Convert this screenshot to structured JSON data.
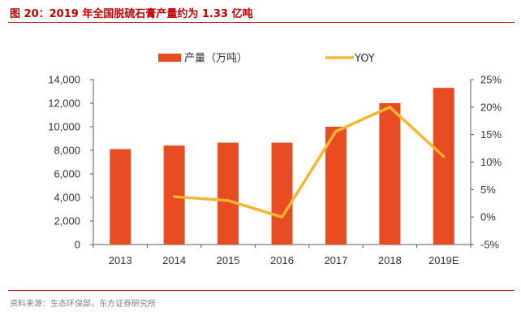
{
  "figure": {
    "title": "图 20：2019 年全国脱硫石膏产量约为 1.33 亿吨",
    "source": "资料来源：生态环保部，东方证券研究所"
  },
  "colors": {
    "bar": "#e84c22",
    "line": "#f8b532",
    "title": "#c00000",
    "axis": "#333333"
  },
  "chart_data": {
    "type": "bar",
    "categories": [
      "2013",
      "2014",
      "2015",
      "2016",
      "2017",
      "2018",
      "2019E"
    ],
    "series": [
      {
        "name": "产量（万吨）",
        "type": "bar",
        "axis": "left",
        "values": [
          8100,
          8400,
          8650,
          8650,
          10000,
          12000,
          13300
        ]
      },
      {
        "name": "YOY",
        "type": "line",
        "axis": "right",
        "values": [
          null,
          3.7,
          3.0,
          0.0,
          15.6,
          20.0,
          11.0
        ]
      }
    ],
    "y_left": {
      "lim": [
        0,
        14000
      ],
      "ticks": [
        0,
        2000,
        4000,
        6000,
        8000,
        10000,
        12000,
        14000
      ],
      "tick_labels": [
        "0",
        "2,000",
        "4,000",
        "6,000",
        "8,000",
        "10,000",
        "12,000",
        "14,000"
      ]
    },
    "y_right": {
      "lim": [
        -5,
        25
      ],
      "ticks": [
        -5,
        0,
        5,
        10,
        15,
        20,
        25
      ],
      "tick_labels": [
        "-5%",
        "0%",
        "5%",
        "10%",
        "15%",
        "20%",
        "25%"
      ]
    },
    "grid": false,
    "legend_position": "top-center"
  }
}
